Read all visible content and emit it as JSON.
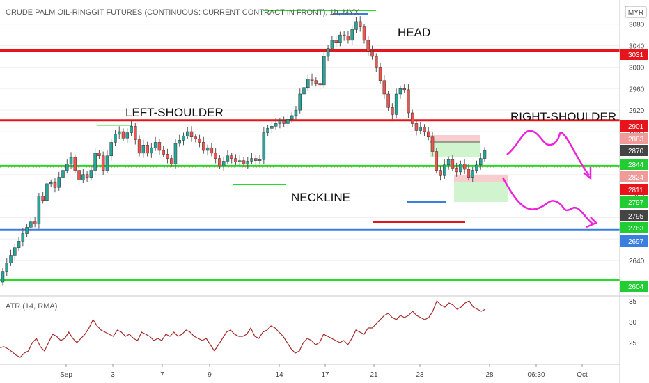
{
  "title": "CRUDE PALM OIL-RINGGIT FUTURES (CONTINUOUS: CURRENT CONTRACT IN FRONT), 1h, MYX",
  "currency_badge": "MYR",
  "chart_data": [
    {
      "type": "candlestick",
      "title": "CRUDE PALM OIL-RINGGIT FUTURES (CONTINUOUS: CURRENT CONTRACT IN FRONT), 1h, MYX",
      "ylim": [
        2578,
        3125
      ],
      "y_ticks": [
        2640,
        2680,
        2720,
        2760,
        2800,
        2840,
        2880,
        2920,
        2960,
        3000,
        3040,
        3080
      ],
      "x_ticks": [
        "Sep",
        "3",
        "7",
        "9",
        "14",
        "17",
        "21",
        "23",
        "28",
        "06:30",
        "Oct"
      ],
      "annotations": [
        "HEAD",
        "LEFT-SHOULDER",
        "RIGHT-SHOULDER",
        "NECKLINE"
      ],
      "horizontal_levels": [
        {
          "value": 3031,
          "color": "#e8141c"
        },
        {
          "value": 2901,
          "color": "#e8141c"
        },
        {
          "value": 2816,
          "color": "#22dd22"
        },
        {
          "value": 2697,
          "color": "#3a7ee0"
        },
        {
          "value": 2604,
          "color": "#22dd22"
        }
      ],
      "price_labels": [
        {
          "label": "2901",
          "color": "#e8141c"
        },
        {
          "label": "2883",
          "color": "#f19a9a"
        },
        {
          "label": "2870",
          "color": "#444444"
        },
        {
          "label": "2844",
          "color": "#22cc33"
        },
        {
          "label": "2824",
          "color": "#f19a9a"
        },
        {
          "label": "2811",
          "color": "#e8141c"
        },
        {
          "label": "2797",
          "color": "#22cc33"
        },
        {
          "label": "2795",
          "color": "#444444"
        },
        {
          "label": "2763",
          "color": "#22cc33"
        },
        {
          "label": "3031",
          "color": "#e8141c"
        },
        {
          "label": "2697",
          "color": "#3a7ee0"
        },
        {
          "label": "2604",
          "color": "#22cc33"
        }
      ],
      "series": [
        {
          "name": "price",
          "close": [
            2620,
            2636,
            2650,
            2664,
            2676,
            2690,
            2702,
            2712,
            2708,
            2760,
            2752,
            2783,
            2785,
            2776,
            2795,
            2808,
            2820,
            2832,
            2808,
            2790,
            2800,
            2795,
            2808,
            2840,
            2835,
            2808,
            2835,
            2860,
            2875,
            2880,
            2868,
            2878,
            2890,
            2865,
            2840,
            2855,
            2840,
            2850,
            2860,
            2845,
            2838,
            2830,
            2820,
            2858,
            2864,
            2872,
            2880,
            2870,
            2866,
            2860,
            2845,
            2850,
            2840,
            2830,
            2816,
            2825,
            2835,
            2830,
            2824,
            2826,
            2820,
            2825,
            2830,
            2826,
            2828,
            2878,
            2886,
            2890,
            2895,
            2900,
            2895,
            2903,
            2910,
            2920,
            2950,
            2962,
            2978,
            2975,
            2970,
            2967,
            3020,
            3035,
            3050,
            3045,
            3060,
            3058,
            3050,
            3070,
            3085,
            3075,
            3050,
            3030,
            3020,
            3000,
            2975,
            2950,
            2925,
            2912,
            2950,
            2960,
            2958,
            2915,
            2895,
            2882,
            2888,
            2880,
            2870,
            2843,
            2808,
            2798,
            2818,
            2828,
            2812,
            2805,
            2820,
            2810,
            2795,
            2808,
            2818,
            2830,
            2845
          ],
          "open": [
            2600,
            2620,
            2636,
            2650,
            2664,
            2676,
            2690,
            2702,
            2712,
            2708,
            2760,
            2752,
            2783,
            2785,
            2776,
            2795,
            2808,
            2820,
            2832,
            2808,
            2790,
            2800,
            2795,
            2808,
            2840,
            2835,
            2808,
            2835,
            2860,
            2875,
            2880,
            2868,
            2878,
            2890,
            2865,
            2840,
            2855,
            2840,
            2850,
            2860,
            2845,
            2838,
            2830,
            2820,
            2858,
            2864,
            2872,
            2880,
            2870,
            2866,
            2860,
            2845,
            2850,
            2840,
            2830,
            2816,
            2825,
            2835,
            2830,
            2824,
            2826,
            2820,
            2825,
            2830,
            2826,
            2828,
            2878,
            2886,
            2890,
            2895,
            2900,
            2895,
            2903,
            2910,
            2920,
            2950,
            2962,
            2978,
            2975,
            2970,
            2967,
            3020,
            3035,
            3050,
            3045,
            3060,
            3058,
            3050,
            3070,
            3085,
            3075,
            3050,
            3030,
            3020,
            3000,
            2975,
            2950,
            2925,
            2912,
            2950,
            2960,
            2958,
            2915,
            2895,
            2882,
            2888,
            2880,
            2870,
            2843,
            2808,
            2798,
            2818,
            2828,
            2812,
            2805,
            2820,
            2810,
            2795,
            2808,
            2818,
            2830
          ]
        },
        {
          "name": "ATR (14, RMA)",
          "values": [
            23.8,
            24.0,
            23.5,
            22.8,
            22.0,
            21.5,
            22.5,
            23.0,
            25.0,
            26.0,
            24.0,
            23.0,
            25.0,
            27.0,
            26.5,
            25.5,
            26.0,
            27.5,
            26.0,
            25.0,
            26.0,
            27.0,
            28.5,
            30.5,
            29.0,
            28.0,
            27.5,
            27.0,
            26.5,
            28.0,
            27.5,
            26.5,
            27.0,
            26.0,
            25.5,
            27.5,
            27.0,
            26.5,
            25.5,
            26.0,
            25.5,
            27.0,
            26.5,
            27.5,
            26.5,
            27.0,
            28.0,
            27.5,
            26.5,
            26.0,
            25.5,
            26.0,
            24.5,
            23.0,
            24.5,
            26.0,
            27.5,
            28.0,
            27.0,
            26.5,
            26.5,
            27.0,
            28.5,
            26.5,
            26.0,
            27.5,
            28.0,
            29.0,
            28.5,
            27.5,
            26.5,
            25.0,
            23.5,
            22.5,
            23.0,
            25.0,
            26.0,
            25.5,
            24.5,
            25.0,
            27.0,
            26.5,
            26.0,
            25.5,
            25.0,
            25.5,
            24.5,
            26.0,
            28.0,
            27.5,
            27.0,
            28.5,
            28.5,
            29.5,
            30.5,
            31.5,
            32.0,
            31.0,
            30.5,
            31.5,
            31.0,
            31.5,
            32.5,
            31.5,
            31.0,
            30.5,
            31.0,
            32.5,
            35.0,
            34.0,
            33.5,
            34.5,
            34.0,
            33.0,
            33.5,
            34.5,
            35.0,
            33.5,
            33.0,
            32.5,
            33.0
          ]
        }
      ]
    },
    {
      "type": "line",
      "title": "ATR (14, RMA)",
      "ylim": [
        20,
        36
      ],
      "y_ticks": [
        25,
        30,
        35
      ]
    }
  ]
}
